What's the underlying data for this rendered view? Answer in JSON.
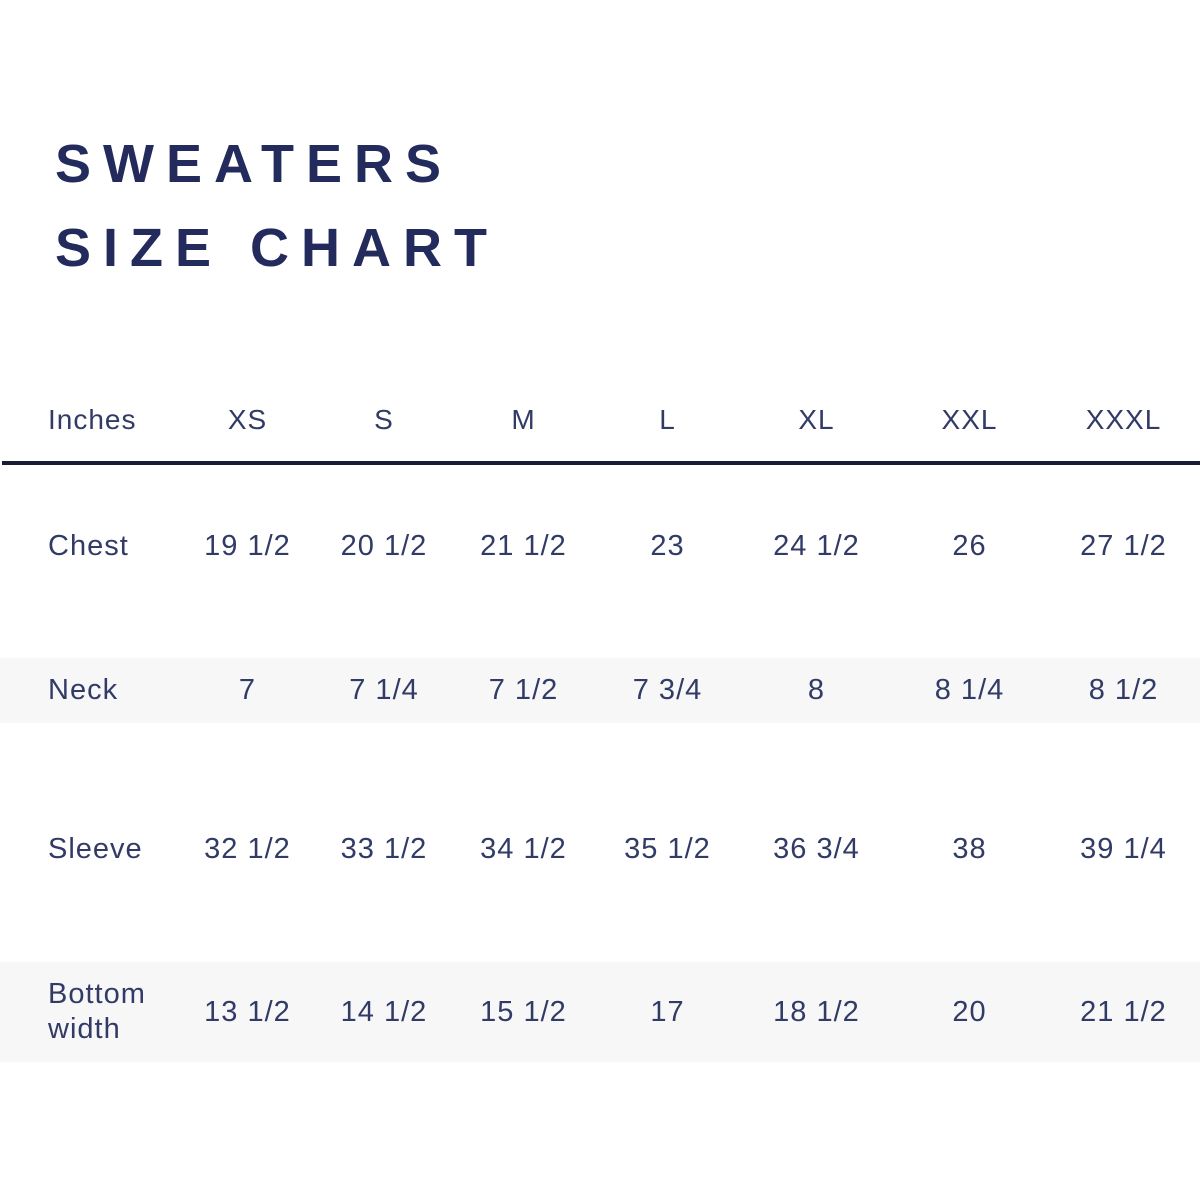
{
  "title": {
    "line1": "SWEATERS",
    "line2": "SIZE CHART"
  },
  "colors": {
    "title_navy": "#232b5d",
    "table_text_navy": "#313b66",
    "band_gray": "#f7f7f8",
    "divider_navy": "#191c33",
    "background": "#ffffff"
  },
  "chart_data": {
    "type": "table",
    "title": "SWEATERS SIZE CHART",
    "unit_label": "Inches",
    "columns": [
      "XS",
      "S",
      "M",
      "L",
      "XL",
      "XXL",
      "XXXL"
    ],
    "rows": [
      {
        "label": "Chest",
        "values": [
          "19 1/2",
          "20 1/2",
          "21 1/2",
          "23",
          "24 1/2",
          "26",
          "27 1/2"
        ]
      },
      {
        "label": "Neck",
        "values": [
          "7",
          "7 1/4",
          "7 1/2",
          "7 3/4",
          "8",
          "8 1/4",
          "8 1/2"
        ]
      },
      {
        "label": "Sleeve",
        "values": [
          "32 1/2",
          "33 1/2",
          "34 1/2",
          "35 1/2",
          "36 3/4",
          "38",
          "39 1/4"
        ]
      },
      {
        "label": "Bottom width",
        "values": [
          "13 1/2",
          "14 1/2",
          "15 1/2",
          "17",
          "18 1/2",
          "20",
          "21 1/2"
        ]
      }
    ],
    "layout_hints": {
      "striped_rows": [
        "Neck",
        "Bottom width"
      ],
      "header_divider": true
    }
  }
}
